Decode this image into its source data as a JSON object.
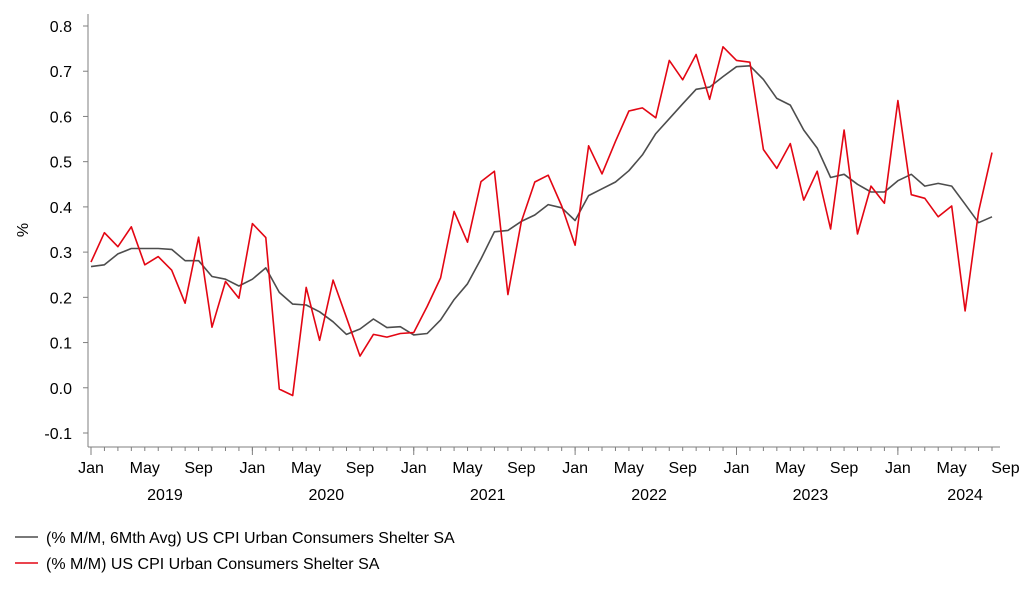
{
  "chart_data": {
    "type": "line",
    "title": "",
    "xlabel": "",
    "ylabel": "%",
    "ylim": [
      -0.1,
      0.8
    ],
    "ytick_labels": [
      "-0.1",
      "0.0",
      "0.1",
      "0.2",
      "0.3",
      "0.4",
      "0.5",
      "0.6",
      "0.7",
      "0.8"
    ],
    "ytick_values": [
      -0.1,
      0.0,
      0.1,
      0.2,
      0.3,
      0.4,
      0.5,
      0.6,
      0.7,
      0.8
    ],
    "month_ticks": [
      {
        "index": 0,
        "label": "Jan"
      },
      {
        "index": 4,
        "label": "May"
      },
      {
        "index": 8,
        "label": "Sep"
      },
      {
        "index": 12,
        "label": "Jan"
      },
      {
        "index": 16,
        "label": "May"
      },
      {
        "index": 20,
        "label": "Sep"
      },
      {
        "index": 24,
        "label": "Jan"
      },
      {
        "index": 28,
        "label": "May"
      },
      {
        "index": 32,
        "label": "Sep"
      },
      {
        "index": 36,
        "label": "Jan"
      },
      {
        "index": 40,
        "label": "May"
      },
      {
        "index": 44,
        "label": "Sep"
      },
      {
        "index": 48,
        "label": "Jan"
      },
      {
        "index": 52,
        "label": "May"
      },
      {
        "index": 56,
        "label": "Sep"
      },
      {
        "index": 60,
        "label": "Jan"
      },
      {
        "index": 64,
        "label": "May"
      },
      {
        "index": 68,
        "label": "Sep"
      }
    ],
    "year_labels": [
      {
        "index": 5.5,
        "label": "2019"
      },
      {
        "index": 17.5,
        "label": "2020"
      },
      {
        "index": 29.5,
        "label": "2021"
      },
      {
        "index": 41.5,
        "label": "2022"
      },
      {
        "index": 53.5,
        "label": "2023"
      },
      {
        "index": 65,
        "label": "2024"
      }
    ],
    "x_start": "Jan 2019",
    "x_end": "Sep 2024",
    "series": [
      {
        "name": "(% M/M, 6Mth Avg) US CPI Urban Consumers Shelter SA",
        "color": "#4d4d4d",
        "values": [
          0.268,
          0.272,
          0.296,
          0.308,
          0.308,
          0.308,
          0.306,
          0.281,
          0.281,
          0.246,
          0.24,
          0.225,
          0.24,
          0.265,
          0.211,
          0.185,
          0.183,
          0.168,
          0.146,
          0.118,
          0.13,
          0.152,
          0.133,
          0.135,
          0.117,
          0.12,
          0.15,
          0.195,
          0.23,
          0.285,
          0.345,
          0.348,
          0.368,
          0.382,
          0.405,
          0.398,
          0.37,
          0.425,
          0.44,
          0.455,
          0.48,
          0.515,
          0.562,
          0.595,
          0.628,
          0.66,
          0.665,
          0.688,
          0.71,
          0.712,
          0.682,
          0.64,
          0.625,
          0.57,
          0.53,
          0.465,
          0.472,
          0.45,
          0.433,
          0.433,
          0.458,
          0.472,
          0.446,
          0.452,
          0.446,
          0.406,
          0.365,
          0.378
        ]
      },
      {
        "name": "(% M/M) US CPI Urban Consumers Shelter SA",
        "color": "#e30613",
        "values": [
          0.278,
          0.343,
          0.312,
          0.356,
          0.272,
          0.29,
          0.26,
          0.187,
          0.333,
          0.134,
          0.235,
          0.198,
          0.363,
          0.332,
          -0.003,
          -0.017,
          0.222,
          0.105,
          0.238,
          0.155,
          0.07,
          0.118,
          0.112,
          0.12,
          0.122,
          0.18,
          0.243,
          0.39,
          0.322,
          0.456,
          0.479,
          0.206,
          0.367,
          0.455,
          0.47,
          0.402,
          0.315,
          0.535,
          0.473,
          0.545,
          0.612,
          0.619,
          0.597,
          0.724,
          0.681,
          0.737,
          0.638,
          0.754,
          0.724,
          0.72,
          0.527,
          0.485,
          0.54,
          0.415,
          0.479,
          0.351,
          0.57,
          0.34,
          0.446,
          0.408,
          0.635,
          0.427,
          0.419,
          0.378,
          0.402,
          0.17,
          0.39,
          0.52
        ]
      }
    ],
    "legend_position": "bottom-left"
  }
}
